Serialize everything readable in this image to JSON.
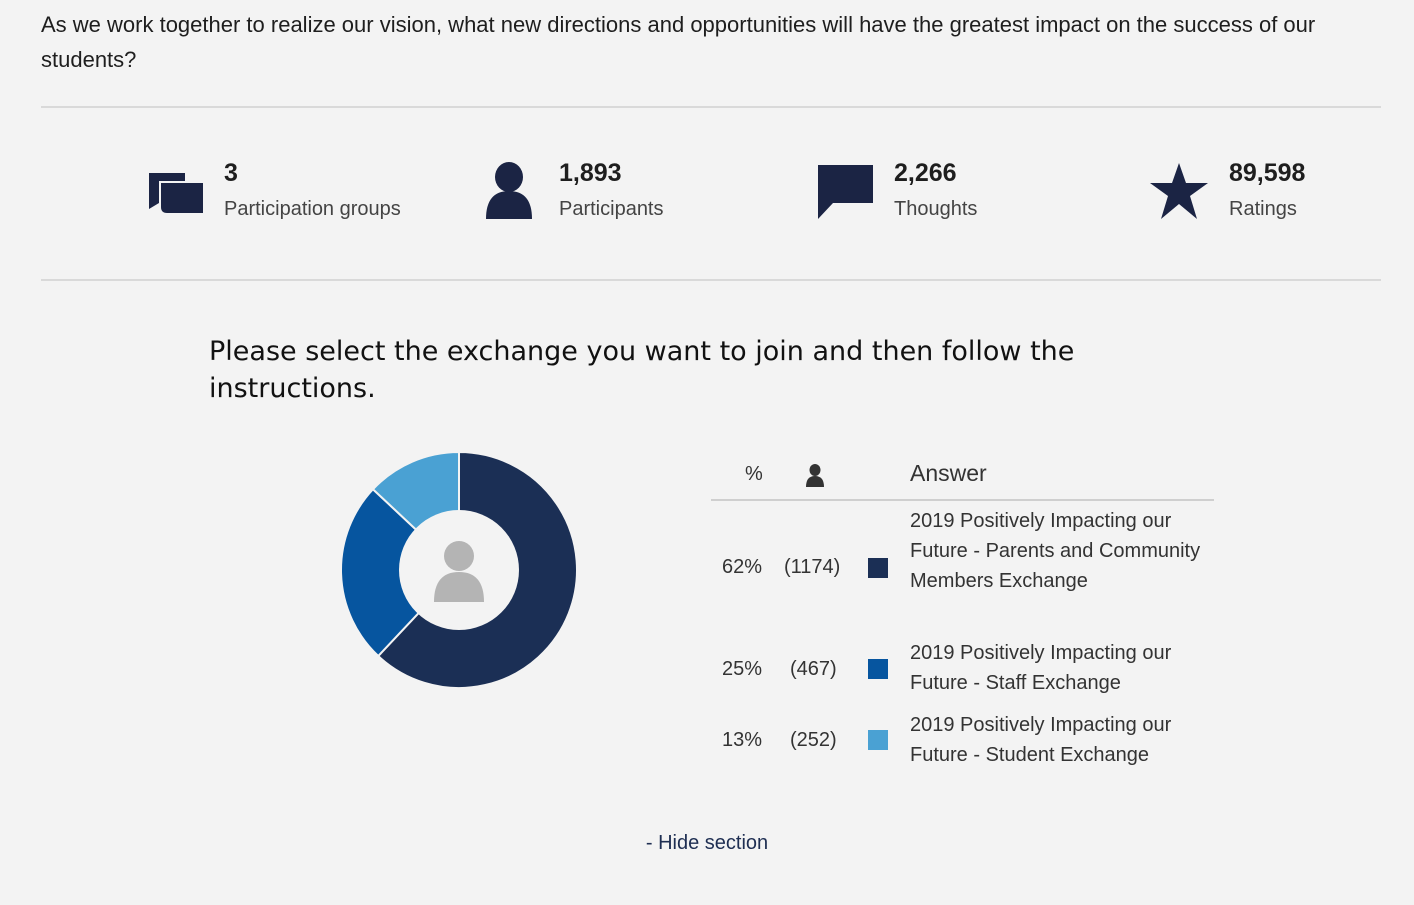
{
  "question": "As we work together to realize our vision, what new directions and opportunities will have the greatest impact on the success of our students?",
  "stats": [
    {
      "icon": "chat-bubbles-icon",
      "value": "3",
      "label": "Participation groups"
    },
    {
      "icon": "person-icon",
      "value": "1,893",
      "label": "Participants"
    },
    {
      "icon": "speech-bubble-icon",
      "value": "2,266",
      "label": "Thoughts"
    },
    {
      "icon": "star-icon",
      "value": "89,598",
      "label": "Ratings"
    }
  ],
  "subtitle": "Please select the exchange you want to join and then follow the instructions.",
  "table": {
    "header_pct": "%",
    "header_person_icon": "person-icon",
    "header_answer": "Answer"
  },
  "colors": {
    "navy": "#1b2f55",
    "blue": "#06559f",
    "light_blue": "#4aa1d3",
    "icon_dark": "#1b2444",
    "center_icon": "#b4b4b4"
  },
  "chart_data": {
    "type": "pie",
    "donut": true,
    "center_icon": "person-icon",
    "categories": [
      "2019 Positively Impacting our Future - Parents and Community Members Exchange",
      "2019 Positively Impacting our Future - Staff Exchange",
      "2019 Positively Impacting our Future - Student Exchange"
    ],
    "values": [
      62,
      25,
      13
    ],
    "counts": [
      1174,
      467,
      252
    ],
    "colors": [
      "#1b2f55",
      "#06559f",
      "#4aa1d3"
    ]
  },
  "rows": [
    {
      "pct": "62%",
      "count": "(1174)",
      "answer": "2019 Positively Impacting our Future - Parents and Community Members Exchange"
    },
    {
      "pct": "25%",
      "count": "(467)",
      "answer": "2019 Positively Impacting our Future - Staff Exchange"
    },
    {
      "pct": "13%",
      "count": "(252)",
      "answer": "2019 Positively Impacting our Future - Student Exchange"
    }
  ],
  "hide_section": "- Hide section"
}
